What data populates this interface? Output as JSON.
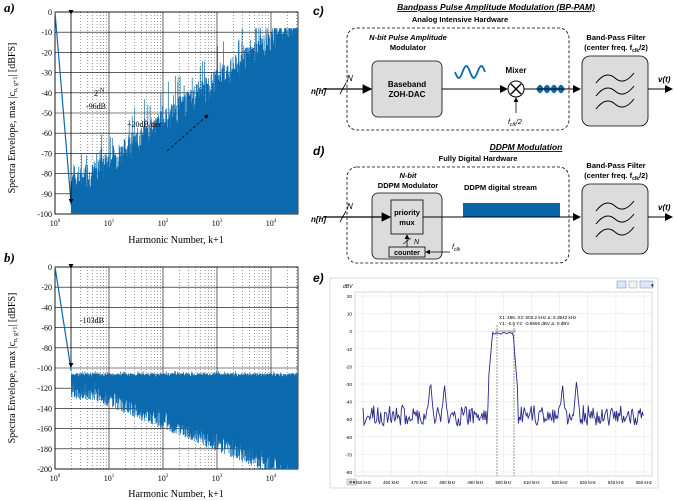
{
  "panel_a": {
    "panel_label": "a)",
    "ylabel": "Spectra Envelope, max |c",
    "ylabel_sub": "n, g+1",
    "ylabel_unit": "| [dBFS]",
    "xlabel": "Harmonic Number, k+1",
    "yticks": [
      "0",
      "-10",
      "-20",
      "-30",
      "-40",
      "-50",
      "-60",
      "-70",
      "-80",
      "-90",
      "-100"
    ],
    "xticks": [
      "10",
      "10",
      "10",
      "10",
      "10"
    ],
    "xtick_exps": [
      "0",
      "1",
      "2",
      "3",
      "4"
    ],
    "annot_2pow": "2",
    "annot_2pow_exp": "-N",
    "annot_db": "-96dB",
    "annot_slope": "+20dB/dec"
  },
  "panel_b": {
    "panel_label": "b)",
    "ylabel": "Spectra Envelope, max |c",
    "ylabel_sub": "n, g+1",
    "ylabel_unit": "| [dBFS]",
    "xlabel": "Harmonic Number, k+1",
    "yticks": [
      "0",
      "-20",
      "-40",
      "-60",
      "-80",
      "-100",
      "-120",
      "-140",
      "-160",
      "-180",
      "-200"
    ],
    "xticks": [
      "10",
      "10",
      "10",
      "10",
      "10"
    ],
    "xtick_exps": [
      "0",
      "1",
      "2",
      "3",
      "4"
    ],
    "annot_db": "-103dB"
  },
  "panel_c": {
    "panel_label": "c)",
    "title": "Bandpass Pulse Amplitude Modulation (BP-PAM)",
    "subtitle": "Analog Intensive Hardware",
    "modulator_title_line1": "N-bit Pulse Amplitude",
    "modulator_title_line2": "Modulator",
    "block_line1": "Baseband",
    "block_line2": "ZOH-DAC",
    "mixer_label": "Mixer",
    "mixer_freq": "f",
    "mixer_freq_sub": "clk",
    "mixer_freq_tail": "/2",
    "filter_line1": "Band-Pass Filter",
    "filter_line2": "(center freq. f",
    "filter_sub": "clk",
    "filter_tail": "/2)",
    "input_label": "n[h]",
    "bus_label": "N",
    "output_label": "v(t)"
  },
  "panel_d": {
    "panel_label": "d)",
    "title": "DDPM Modulation",
    "subtitle": "Fully Digital Hardware",
    "modulator_title_line1": "N-bit",
    "modulator_title_line2": "DDPM Modulator",
    "stream_label": "DDPM digital stream",
    "mux_line1": "priority",
    "mux_line2": "mux",
    "counter_label": "counter",
    "counter_bus": "N",
    "clk_label": "f",
    "clk_sub": "clk",
    "filter_line1": "Band-Pass Filter",
    "filter_line2": "(center freq. f",
    "filter_sub": "clk",
    "filter_tail": "/2)",
    "input_label": "n[h]",
    "bus_label": "N",
    "output_label": "v(t)"
  },
  "panel_e": {
    "panel_label": "e)",
    "unit": "dBV",
    "yticks": [
      "20",
      "10",
      "0",
      "-10",
      "-20",
      "-30",
      "-40",
      "-50",
      "-60",
      "-70",
      "-80"
    ],
    "xticks": [
      "450 kHz",
      "460 kHz",
      "470 kHz",
      "480 kHz",
      "490 kHz",
      "500 kHz",
      "510 kHz",
      "520 kHz",
      "530 kHz",
      "540 kHz",
      "550 kHz"
    ],
    "cursor_line1": "X1: 496.  X2: 503.2 kHz    Δ: 6.3942 kHz",
    "cursor_line2": "Y1: -0.6 Y2: -0.6655 dBV       Δ: 0 dBV"
  },
  "colors": {
    "spectrum_blue": "#0a6aad",
    "bar_blue": "#0865a8",
    "trace_navy": "#2a2a8a",
    "grid": "#000000",
    "box_fill": "#dcdcdc"
  }
}
